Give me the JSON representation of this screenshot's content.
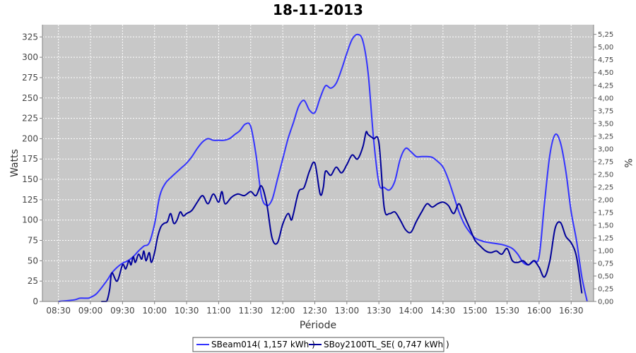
{
  "chart_data": {
    "type": "line",
    "title": "18-11-2013",
    "xlabel": "Période",
    "ylabel": "Watts",
    "y2label": "%",
    "xlim": [
      8.25,
      16.85
    ],
    "ylim": [
      0,
      340
    ],
    "y2lim": [
      0,
      5.44
    ],
    "grid": true,
    "legend_position": "bottom",
    "x_ticks": [
      {
        "value": 8.5,
        "label": "08:30"
      },
      {
        "value": 9.0,
        "label": "09:00"
      },
      {
        "value": 9.5,
        "label": "09:30"
      },
      {
        "value": 10.0,
        "label": "10:00"
      },
      {
        "value": 10.5,
        "label": "10:30"
      },
      {
        "value": 11.0,
        "label": "11:00"
      },
      {
        "value": 11.5,
        "label": "11:30"
      },
      {
        "value": 12.0,
        "label": "12:00"
      },
      {
        "value": 12.5,
        "label": "12:30"
      },
      {
        "value": 13.0,
        "label": "13:00"
      },
      {
        "value": 13.5,
        "label": "13:30"
      },
      {
        "value": 14.0,
        "label": "14:00"
      },
      {
        "value": 14.5,
        "label": "14:30"
      },
      {
        "value": 15.0,
        "label": "15:00"
      },
      {
        "value": 15.5,
        "label": "15:30"
      },
      {
        "value": 16.0,
        "label": "16:00"
      },
      {
        "value": 16.5,
        "label": "16:30"
      }
    ],
    "y_ticks": [
      {
        "value": 0,
        "label": "0"
      },
      {
        "value": 25,
        "label": "25"
      },
      {
        "value": 50,
        "label": "50"
      },
      {
        "value": 75,
        "label": "75"
      },
      {
        "value": 100,
        "label": "100"
      },
      {
        "value": 125,
        "label": "125"
      },
      {
        "value": 150,
        "label": "150"
      },
      {
        "value": 175,
        "label": "175"
      },
      {
        "value": 200,
        "label": "200"
      },
      {
        "value": 225,
        "label": "225"
      },
      {
        "value": 250,
        "label": "250"
      },
      {
        "value": 275,
        "label": "275"
      },
      {
        "value": 300,
        "label": "300"
      },
      {
        "value": 325,
        "label": "325"
      }
    ],
    "y2_ticks": [
      {
        "value": 0.0,
        "label": "0,00"
      },
      {
        "value": 0.25,
        "label": "0,25"
      },
      {
        "value": 0.5,
        "label": "0,50"
      },
      {
        "value": 0.75,
        "label": "0,75"
      },
      {
        "value": 1.0,
        "label": "1,00"
      },
      {
        "value": 1.25,
        "label": "1,25"
      },
      {
        "value": 1.5,
        "label": "1,50"
      },
      {
        "value": 1.75,
        "label": "1,75"
      },
      {
        "value": 2.0,
        "label": "2,00"
      },
      {
        "value": 2.25,
        "label": "2,25"
      },
      {
        "value": 2.5,
        "label": "2,50"
      },
      {
        "value": 2.75,
        "label": "2,75"
      },
      {
        "value": 3.0,
        "label": "3,00"
      },
      {
        "value": 3.25,
        "label": "3,25"
      },
      {
        "value": 3.5,
        "label": "3,50"
      },
      {
        "value": 3.75,
        "label": "3,75"
      },
      {
        "value": 4.0,
        "label": "4,00"
      },
      {
        "value": 4.25,
        "label": "4,25"
      },
      {
        "value": 4.5,
        "label": "4,50"
      },
      {
        "value": 4.75,
        "label": "4,75"
      },
      {
        "value": 5.0,
        "label": "5,00"
      },
      {
        "value": 5.25,
        "label": "5,25"
      }
    ],
    "series": [
      {
        "name": "SBeam014( 1,157 kWh )",
        "color": "#3333ff",
        "x": [
          8.5,
          8.75,
          8.833,
          8.95,
          9.0,
          9.1,
          9.25,
          9.333,
          9.417,
          9.5,
          9.583,
          9.667,
          9.75,
          9.833,
          9.917,
          10.0,
          10.083,
          10.167,
          10.25,
          10.333,
          10.417,
          10.5,
          10.583,
          10.667,
          10.75,
          10.833,
          10.917,
          11.0,
          11.083,
          11.167,
          11.25,
          11.333,
          11.417,
          11.5,
          11.583,
          11.667,
          11.75,
          11.833,
          11.917,
          12.0,
          12.083,
          12.167,
          12.25,
          12.333,
          12.417,
          12.5,
          12.583,
          12.667,
          12.75,
          12.833,
          12.917,
          13.0,
          13.083,
          13.167,
          13.25,
          13.333,
          13.417,
          13.5,
          13.583,
          13.667,
          13.75,
          13.833,
          13.917,
          14.0,
          14.083,
          14.167,
          14.25,
          14.333,
          14.417,
          14.5,
          14.583,
          14.667,
          14.75,
          14.833,
          14.917,
          15.0,
          15.083,
          15.167,
          15.25,
          15.333,
          15.417,
          15.5,
          15.583,
          15.667,
          15.75,
          15.833,
          15.917,
          16.0,
          16.083,
          16.167,
          16.25,
          16.333,
          16.417,
          16.5,
          16.583,
          16.667,
          16.75
        ],
        "values": [
          0,
          2,
          4,
          4,
          5,
          10,
          25,
          35,
          42,
          47,
          50,
          55,
          62,
          68,
          72,
          95,
          130,
          145,
          152,
          158,
          164,
          170,
          178,
          188,
          196,
          200,
          198,
          198,
          198,
          200,
          205,
          210,
          218,
          215,
          180,
          130,
          118,
          125,
          150,
          175,
          200,
          220,
          240,
          247,
          235,
          232,
          250,
          265,
          262,
          268,
          285,
          305,
          322,
          328,
          320,
          280,
          200,
          145,
          140,
          137,
          148,
          175,
          188,
          184,
          178,
          178,
          178,
          177,
          172,
          165,
          150,
          130,
          110,
          95,
          85,
          78,
          75,
          73,
          72,
          71,
          70,
          68,
          65,
          58,
          48,
          45,
          50,
          55,
          120,
          180,
          205,
          195,
          160,
          110,
          75,
          30,
          0
        ]
      },
      {
        "name": "SBoy2100TL_SE( 0,747 kWh )",
        "color": "#000099",
        "x": [
          9.167,
          9.25,
          9.3,
          9.333,
          9.417,
          9.5,
          9.55,
          9.6,
          9.633,
          9.667,
          9.7,
          9.75,
          9.8,
          9.833,
          9.867,
          9.917,
          9.95,
          10.0,
          10.05,
          10.1,
          10.15,
          10.2,
          10.25,
          10.3,
          10.35,
          10.4,
          10.45,
          10.5,
          10.583,
          10.667,
          10.75,
          10.833,
          10.917,
          11.0,
          11.05,
          11.1,
          11.2,
          11.3,
          11.4,
          11.5,
          11.583,
          11.667,
          11.75,
          11.833,
          11.917,
          12.0,
          12.083,
          12.133,
          12.167,
          12.25,
          12.333,
          12.417,
          12.5,
          12.583,
          12.633,
          12.667,
          12.75,
          12.833,
          12.917,
          13.0,
          13.083,
          13.167,
          13.25,
          13.3,
          13.333,
          13.417,
          13.5,
          13.583,
          13.667,
          13.75,
          13.833,
          13.917,
          14.0,
          14.083,
          14.167,
          14.25,
          14.333,
          14.417,
          14.5,
          14.583,
          14.667,
          14.75,
          14.833,
          14.917,
          15.0,
          15.083,
          15.167,
          15.25,
          15.333,
          15.417,
          15.5,
          15.583,
          15.667,
          15.75,
          15.833,
          15.917,
          16.0,
          16.083,
          16.167,
          16.25,
          16.333,
          16.417,
          16.5,
          16.583,
          16.667
        ],
        "values": [
          0,
          0,
          15,
          35,
          25,
          45,
          40,
          50,
          45,
          55,
          48,
          58,
          52,
          62,
          50,
          60,
          48,
          60,
          80,
          92,
          96,
          98,
          108,
          96,
          100,
          110,
          105,
          108,
          112,
          122,
          130,
          120,
          132,
          122,
          135,
          120,
          128,
          132,
          130,
          135,
          130,
          142,
          120,
          78,
          72,
          95,
          108,
          100,
          108,
          135,
          140,
          160,
          170,
          132,
          140,
          160,
          155,
          165,
          158,
          168,
          180,
          175,
          190,
          208,
          205,
          200,
          195,
          115,
          108,
          110,
          100,
          88,
          85,
          98,
          110,
          120,
          116,
          120,
          122,
          118,
          108,
          120,
          105,
          90,
          75,
          68,
          62,
          60,
          62,
          58,
          65,
          50,
          48,
          50,
          45,
          50,
          42,
          30,
          50,
          90,
          97,
          80,
          72,
          55,
          10
        ]
      }
    ]
  }
}
